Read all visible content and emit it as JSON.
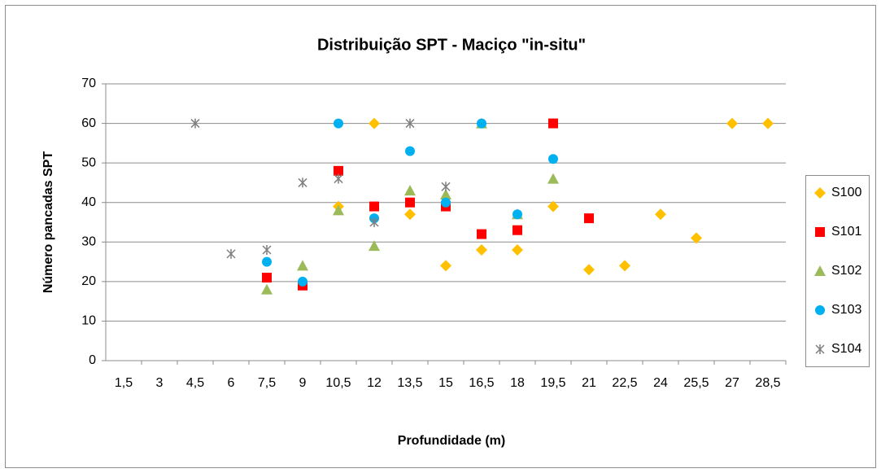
{
  "chart_data": {
    "type": "scatter",
    "title": "Distribuição SPT - Maciço \"in-situ\"",
    "x_label": "Profundidade (m)",
    "y_label": "Número pancadas  SPT",
    "categories": [
      "1,5",
      "3",
      "4,5",
      "6",
      "7,5",
      "9",
      "10,5",
      "12",
      "13,5",
      "15",
      "16,5",
      "18",
      "19,5",
      "21",
      "22,5",
      "24",
      "25,5",
      "27",
      "28,5"
    ],
    "ylim": [
      0,
      70
    ],
    "yticks": [
      0,
      10,
      20,
      30,
      40,
      50,
      60,
      70
    ],
    "grid": true,
    "legend": "right",
    "series": [
      {
        "name": "S100",
        "color": "#FFC000",
        "marker": "diamond",
        "values": [
          null,
          null,
          null,
          null,
          null,
          null,
          39,
          60,
          37,
          24,
          28,
          28,
          39,
          23,
          24,
          37,
          31,
          60,
          60
        ]
      },
      {
        "name": "S101",
        "color": "#FF0000",
        "marker": "square",
        "values": [
          null,
          null,
          null,
          null,
          21,
          19,
          48,
          39,
          40,
          39,
          32,
          33,
          60,
          36,
          null,
          null,
          null,
          null,
          null
        ]
      },
      {
        "name": "S102",
        "color": "#9BBB59",
        "marker": "triangle",
        "values": [
          null,
          null,
          null,
          null,
          18,
          24,
          38,
          29,
          43,
          42,
          60,
          37,
          46,
          null,
          null,
          null,
          null,
          null,
          null
        ]
      },
      {
        "name": "S103",
        "color": "#00B0F0",
        "marker": "circle",
        "values": [
          null,
          null,
          null,
          null,
          25,
          20,
          60,
          36,
          53,
          40,
          60,
          37,
          51,
          null,
          null,
          null,
          null,
          null,
          null
        ]
      },
      {
        "name": "S104",
        "color": "#7F7F7F",
        "marker": "star",
        "values": [
          null,
          null,
          60,
          27,
          28,
          45,
          46,
          35,
          60,
          44,
          null,
          null,
          null,
          null,
          null,
          null,
          null,
          null,
          null
        ]
      }
    ]
  }
}
